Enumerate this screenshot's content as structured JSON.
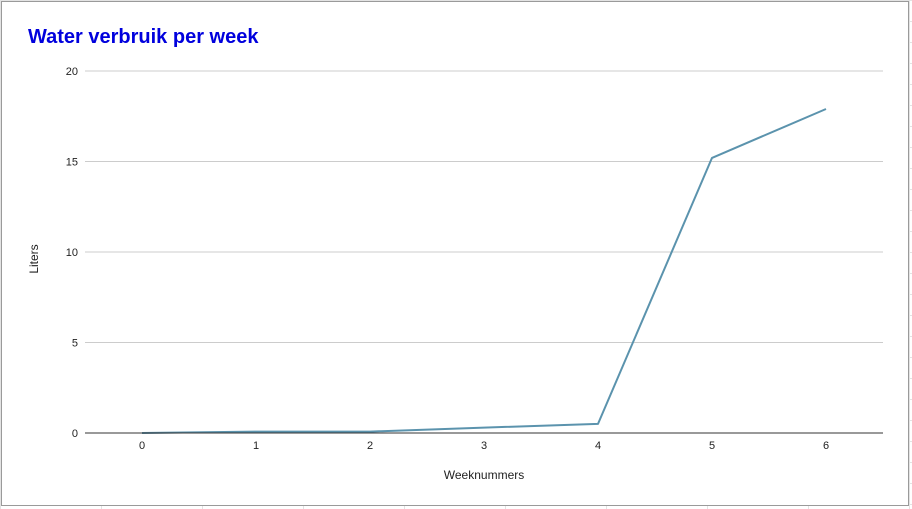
{
  "chart_data": {
    "type": "line",
    "title": "Water verbruik per week",
    "xlabel": "Weeknummers",
    "ylabel": "Liters",
    "x": [
      0,
      1,
      2,
      3,
      4,
      5,
      6
    ],
    "series": [
      {
        "values": [
          0,
          0.08,
          0.08,
          0.3,
          0.5,
          15.2,
          17.9
        ]
      }
    ],
    "x_ticks": [
      "0",
      "1",
      "2",
      "3",
      "4",
      "5",
      "6"
    ],
    "y_ticks": [
      "0",
      "5",
      "10",
      "15",
      "20"
    ],
    "ylim": [
      0,
      20
    ],
    "xlim": [
      -0.5,
      6.5
    ],
    "grid": true,
    "legend": "none"
  },
  "colors": {
    "title": "#0000dd",
    "line": "#5b93ad",
    "gridline": "#cccccc",
    "baseline": "#333333",
    "card_border": "#9a9a9a"
  }
}
